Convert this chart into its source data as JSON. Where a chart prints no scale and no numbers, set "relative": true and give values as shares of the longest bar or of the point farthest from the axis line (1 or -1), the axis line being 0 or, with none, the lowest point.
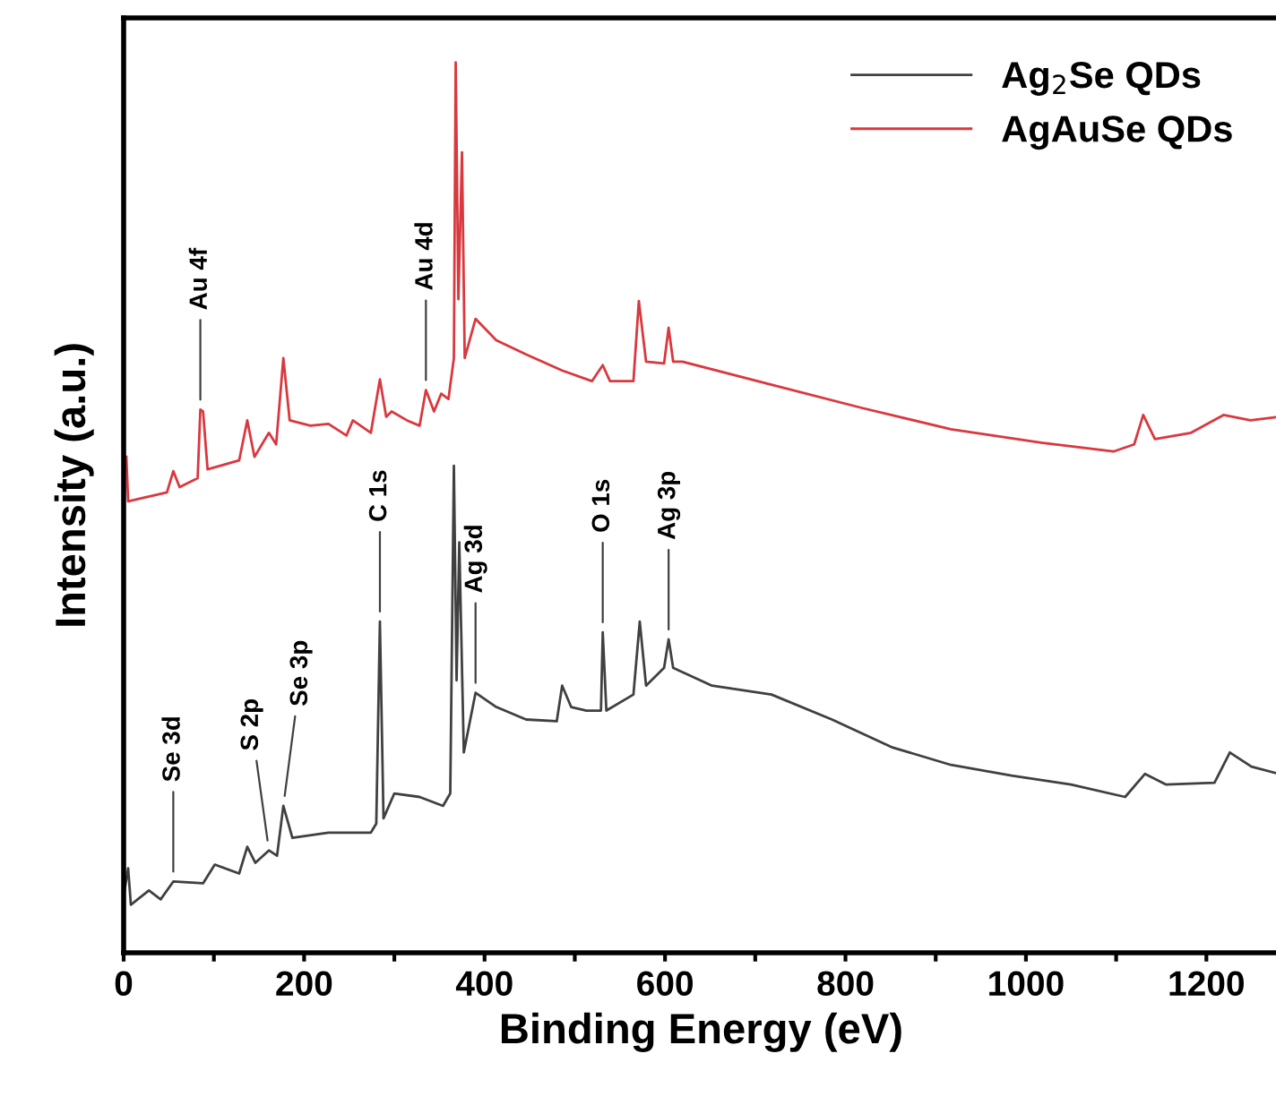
{
  "chart_data": {
    "type": "line",
    "relative": true,
    "xlabel": "Binding Energy (eV)",
    "ylabel": "Intensity (a.u.)",
    "xlim": [
      0,
      1280
    ],
    "xticks": [
      0,
      {
        "value": 100,
        "label": null
      },
      200,
      {
        "value": 300,
        "label": null
      },
      400,
      {
        "value": 500,
        "label": null
      },
      600,
      {
        "value": 700,
        "label": null
      },
      800,
      {
        "value": 900,
        "label": null
      },
      1000,
      {
        "value": 1100,
        "label": null
      },
      1200
    ],
    "tick_labels": "x",
    "grid": false,
    "legend": "top right",
    "marker": "none",
    "line_style": "solid",
    "series": [
      {
        "name": "Ag$_{2}$Se QDs",
        "color": "#404040",
        "x": [
          0,
          5,
          8,
          28,
          41,
          55,
          88,
          101,
          128,
          137,
          146,
          161,
          170,
          177,
          187,
          227,
          274,
          280,
          284,
          288,
          300,
          328,
          354,
          362,
          366,
          369,
          372,
          377,
          390,
          413,
          446,
          480,
          486,
          496,
          513,
          529,
          531,
          535,
          565,
          572,
          579,
          599,
          604,
          609,
          652,
          718,
          785,
          851,
          917,
          984,
          1050,
          1110,
          1132,
          1155,
          1209,
          1226,
          1250,
          1280
        ],
        "values": [
          0.064,
          0.095,
          0.054,
          0.07,
          0.06,
          0.08,
          0.078,
          0.099,
          0.089,
          0.119,
          0.101,
          0.115,
          0.109,
          0.165,
          0.129,
          0.135,
          0.135,
          0.145,
          0.372,
          0.151,
          0.179,
          0.175,
          0.165,
          0.179,
          0.547,
          0.306,
          0.461,
          0.225,
          0.292,
          0.276,
          0.262,
          0.26,
          0.3,
          0.276,
          0.272,
          0.272,
          0.36,
          0.272,
          0.29,
          0.372,
          0.3,
          0.32,
          0.352,
          0.32,
          0.3,
          0.29,
          0.262,
          0.231,
          0.211,
          0.199,
          0.189,
          0.175,
          0.201,
          0.189,
          0.191,
          0.225,
          0.209,
          0.201
        ]
      },
      {
        "name": "AgAuSe QDs",
        "color": "#d9383e",
        "x": [
          3,
          5,
          22,
          48,
          55,
          62,
          82,
          85,
          88,
          93,
          128,
          137,
          145,
          161,
          169,
          177,
          184,
          207,
          227,
          247,
          254,
          274,
          284,
          291,
          297,
          314,
          328,
          335,
          344,
          352,
          360,
          366,
          368,
          371,
          375,
          378,
          390,
          413,
          446,
          486,
          519,
          531,
          539,
          565,
          571,
          579,
          599,
          604,
          609,
          619,
          718,
          818,
          917,
          1017,
          1097,
          1120,
          1130,
          1143,
          1183,
          1219,
          1249,
          1280
        ],
        "values": [
          0.557,
          0.507,
          0.511,
          0.517,
          0.541,
          0.523,
          0.533,
          0.61,
          0.608,
          0.543,
          0.553,
          0.598,
          0.557,
          0.584,
          0.571,
          0.668,
          0.598,
          0.592,
          0.594,
          0.581,
          0.598,
          0.584,
          0.644,
          0.602,
          0.608,
          0.598,
          0.592,
          0.632,
          0.608,
          0.628,
          0.622,
          0.668,
          1.0,
          0.734,
          0.899,
          0.668,
          0.712,
          0.688,
          0.672,
          0.654,
          0.642,
          0.66,
          0.642,
          0.642,
          0.732,
          0.664,
          0.662,
          0.702,
          0.664,
          0.664,
          0.638,
          0.612,
          0.588,
          0.573,
          0.563,
          0.571,
          0.604,
          0.577,
          0.584,
          0.604,
          0.598,
          0.602
        ]
      }
    ],
    "annotations": [
      {
        "text": "Au 4f",
        "x": 85,
        "y": 0.61
      },
      {
        "text": "Au 4d",
        "x": 335,
        "y": 0.632
      },
      {
        "text": "Ag 3d",
        "x": 390,
        "y": 0.292
      },
      {
        "text": "Ag 3p",
        "x": 604,
        "y": 0.352
      },
      {
        "text": "Se 3d",
        "x": 55,
        "y": 0.08
      },
      {
        "text": "S 2p",
        "x": 161,
        "y": 0.115
      },
      {
        "text": "Se 3p",
        "x": 177,
        "y": 0.165
      },
      {
        "text": "C 1s",
        "x": 284,
        "y": 0.372
      },
      {
        "text": "O 1s",
        "x": 531,
        "y": 0.36
      }
    ]
  }
}
